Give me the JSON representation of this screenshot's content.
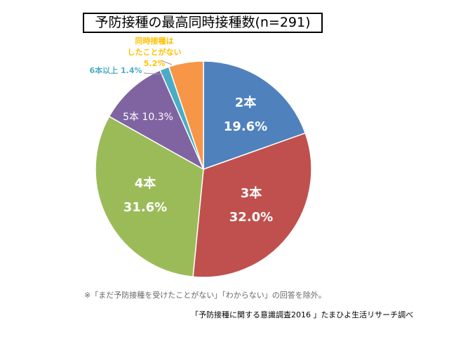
{
  "chart_data": {
    "type": "pie",
    "title": "予防接種の最高同時接種数(n=291)",
    "start_angle": "12 o'clock, clockwise",
    "slices": [
      {
        "label": "2本",
        "value": 19.6,
        "pct": "19.6%",
        "color": "#4F81BD",
        "text_color": "#FFFFFF"
      },
      {
        "label": "3本",
        "value": 32.0,
        "pct": "32.0%",
        "color": "#C0504D",
        "text_color": "#FFFFFF"
      },
      {
        "label": "4本",
        "value": 31.6,
        "pct": "31.6%",
        "color": "#9BBB59",
        "text_color": "#FFFFFF"
      },
      {
        "label": "5本",
        "value": 10.3,
        "pct": "10.3%",
        "color": "#8064A2",
        "text_color": "#FFFFFF"
      },
      {
        "label": "6本以上",
        "value": 1.4,
        "pct": "1.4%",
        "color": "#4BACC6",
        "text_color": "#4BACC6"
      },
      {
        "label": "同時接種はしたことがない",
        "value": 5.2,
        "pct": "5.2%",
        "color": "#F79646",
        "text_color": "#FFC000"
      }
    ]
  },
  "notes": {
    "exclusion": "※「まだ予防接種を受けたことがない」「わからない」の回答を除外。",
    "source": "「予防接種に関する意識調査2016 」たまひよ生活リサーチ調べ"
  }
}
